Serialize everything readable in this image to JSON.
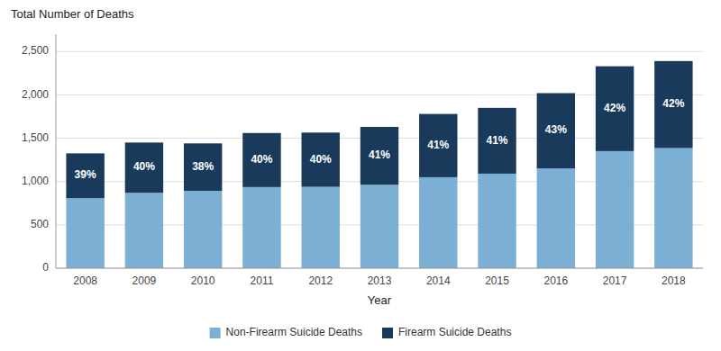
{
  "chart_data": {
    "type": "bar",
    "stacked": true,
    "ylabel": "Total Number of Deaths",
    "xlabel": "Year",
    "categories": [
      "2008",
      "2009",
      "2010",
      "2011",
      "2012",
      "2013",
      "2014",
      "2015",
      "2016",
      "2017",
      "2018"
    ],
    "series": [
      {
        "name": "Non-Firearm Suicide Deaths",
        "color": "#7bafd4",
        "values": [
          808,
          870,
          893,
          936,
          939,
          962,
          1050,
          1091,
          1151,
          1351,
          1386
        ]
      },
      {
        "name": "Firearm Suicide Deaths",
        "color": "#1a3a5c",
        "values": [
          517,
          580,
          547,
          624,
          626,
          668,
          730,
          759,
          869,
          979,
          1004
        ],
        "share_values": [
          39,
          40,
          38,
          40,
          40,
          41,
          41,
          41,
          43,
          42,
          42
        ],
        "share_labels": [
          "39%",
          "40%",
          "38%",
          "40%",
          "40%",
          "41%",
          "41%",
          "41%",
          "43%",
          "42%",
          "42%"
        ]
      }
    ],
    "ylim": [
      0,
      2700
    ],
    "yticks": [
      0,
      500,
      {
        "value": 1000,
        "label": "1,000"
      },
      {
        "value": 1500,
        "label": "1,500"
      },
      {
        "value": 2000,
        "label": "2,000"
      },
      {
        "value": 2500,
        "label": "2,500"
      }
    ],
    "grid": true,
    "legend": "bottom"
  }
}
